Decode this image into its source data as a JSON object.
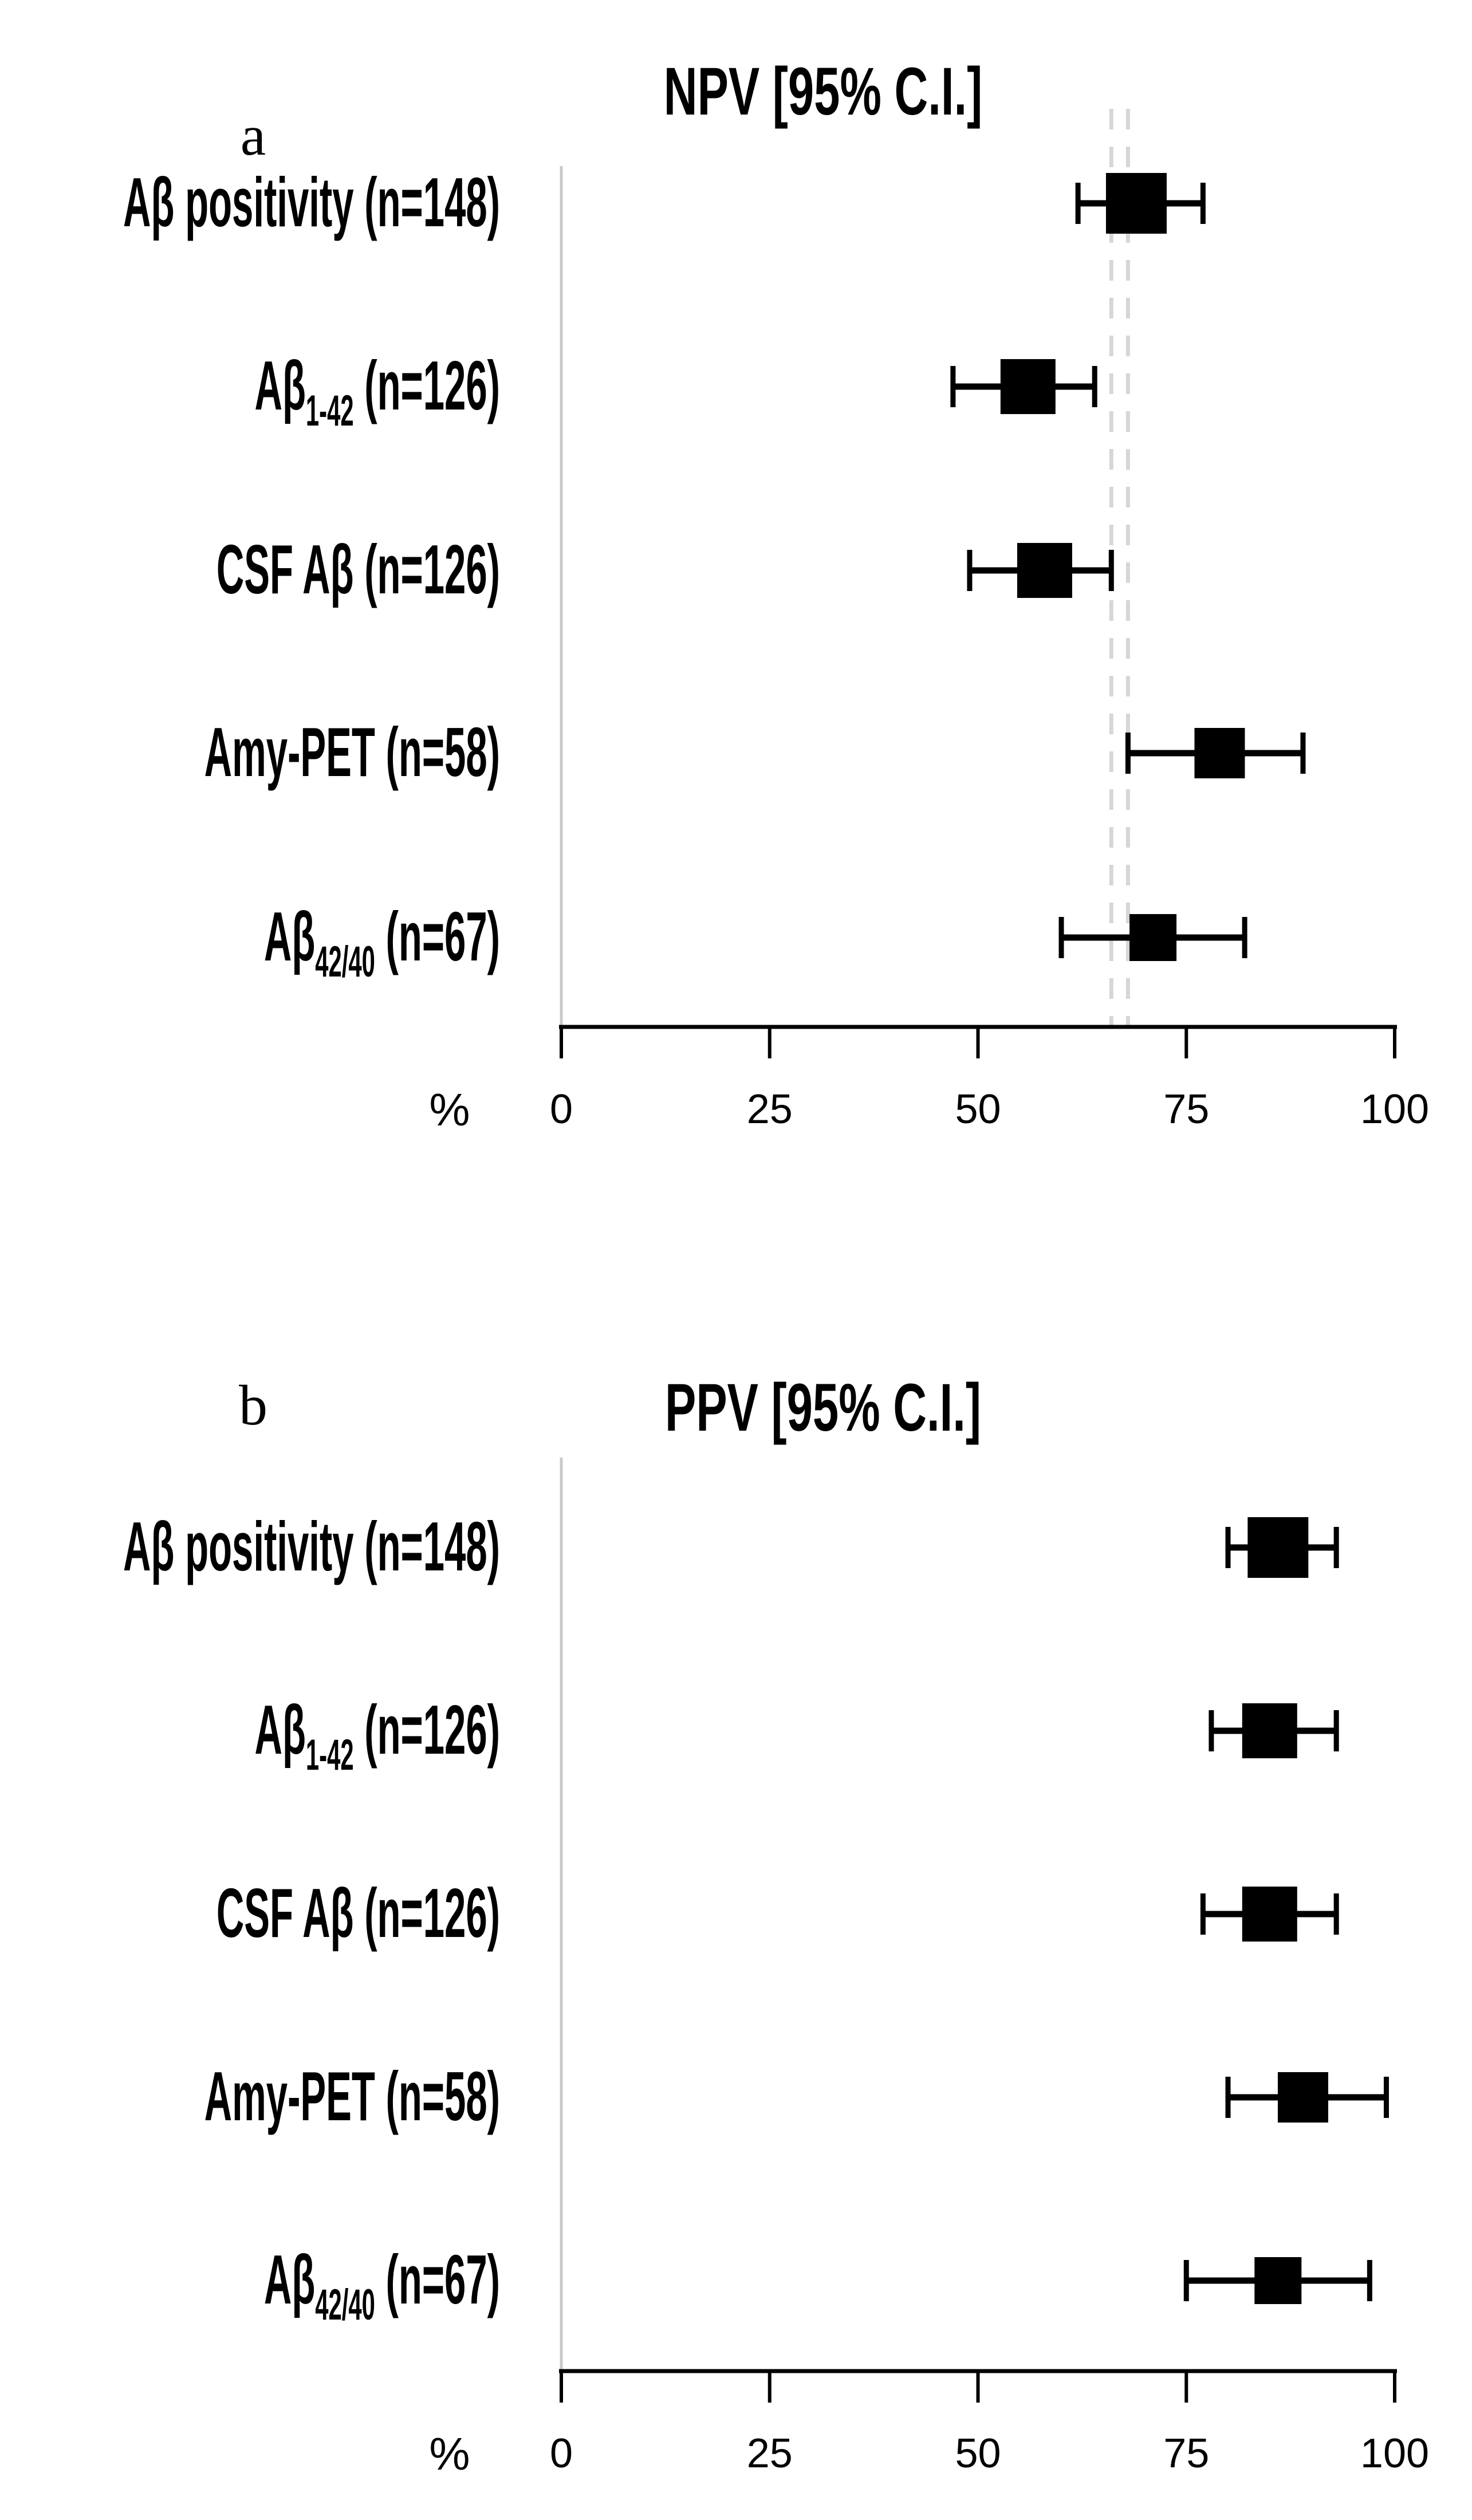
{
  "figure": {
    "background": "#ffffff",
    "accent_black": "#000000",
    "gridline_gray": "#c9c9c9",
    "reference_dash_gray": "#d6d6d6"
  },
  "chart_data": [
    {
      "type": "scatter",
      "subtype": "forest-plot",
      "panel_tag": "a",
      "title": "NPV [95% C.I.]",
      "xlabel": "%",
      "xlim": [
        0,
        100
      ],
      "xticks": [
        0,
        25,
        50,
        75,
        100
      ],
      "grid": "off",
      "reference_lines_x": [
        66,
        68
      ],
      "rows": [
        {
          "label_segments": [
            {
              "t": "Aβ positivity (n=148)"
            }
          ],
          "label_plain": "Aβ positivity (n=148)",
          "n": 148,
          "value": 69,
          "ci": [
            62,
            77
          ]
        },
        {
          "label_segments": [
            {
              "t": "Aβ"
            },
            {
              "t": "1-42",
              "sub": true
            },
            {
              "t": " (n=126)"
            }
          ],
          "label_plain": "Aβ1-42 (n=126)",
          "n": 126,
          "value": 56,
          "ci": [
            47,
            64
          ]
        },
        {
          "label_segments": [
            {
              "t": "CSF Aβ (n=126)"
            }
          ],
          "label_plain": "CSF Aβ (n=126)",
          "n": 126,
          "value": 58,
          "ci": [
            49,
            66
          ]
        },
        {
          "label_segments": [
            {
              "t": "Amy-PET (n=58)"
            }
          ],
          "label_plain": "Amy-PET (n=58)",
          "n": 58,
          "value": 79,
          "ci": [
            68,
            89
          ]
        },
        {
          "label_segments": [
            {
              "t": "Aβ"
            },
            {
              "t": "42/40",
              "sub": true
            },
            {
              "t": " (n=67)"
            }
          ],
          "label_plain": "Aβ42/40 (n=67)",
          "n": 67,
          "value": 71,
          "ci": [
            60,
            82
          ]
        }
      ]
    },
    {
      "type": "scatter",
      "subtype": "forest-plot",
      "panel_tag": "b",
      "title": "PPV [95% C.I.]",
      "xlabel": "%",
      "xlim": [
        0,
        100
      ],
      "xticks": [
        0,
        25,
        50,
        75,
        100
      ],
      "grid": "off",
      "reference_lines_x": [],
      "rows": [
        {
          "label_segments": [
            {
              "t": "Aβ positivity (n=148)"
            }
          ],
          "label_plain": "Aβ positivity (n=148)",
          "n": 148,
          "value": 86,
          "ci": [
            80,
            93
          ]
        },
        {
          "label_segments": [
            {
              "t": "Aβ"
            },
            {
              "t": "1-42",
              "sub": true
            },
            {
              "t": " (n=126)"
            }
          ],
          "label_plain": "Aβ1-42 (n=126)",
          "n": 126,
          "value": 85,
          "ci": [
            78,
            93
          ]
        },
        {
          "label_segments": [
            {
              "t": "CSF Aβ (n=126)"
            }
          ],
          "label_plain": "CSF Aβ (n=126)",
          "n": 126,
          "value": 85,
          "ci": [
            77,
            93
          ]
        },
        {
          "label_segments": [
            {
              "t": "Amy-PET (n=58)"
            }
          ],
          "label_plain": "Amy-PET (n=58)",
          "n": 58,
          "value": 89,
          "ci": [
            80,
            99
          ]
        },
        {
          "label_segments": [
            {
              "t": "Aβ"
            },
            {
              "t": "42/40",
              "sub": true
            },
            {
              "t": " (n=67)"
            }
          ],
          "label_plain": "Aβ42/40 (n=67)",
          "n": 67,
          "value": 86,
          "ci": [
            75,
            97
          ]
        }
      ]
    }
  ]
}
